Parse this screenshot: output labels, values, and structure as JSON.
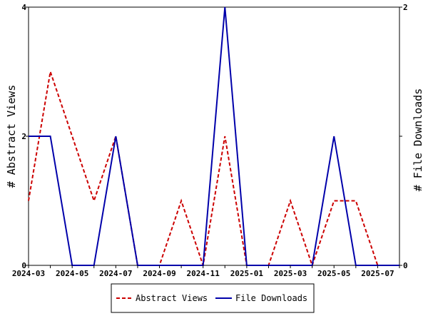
{
  "chart_data": {
    "type": "line",
    "x": [
      "2024-03",
      "2024-04",
      "2024-05",
      "2024-06",
      "2024-07",
      "2024-08",
      "2024-09",
      "2024-10",
      "2024-11",
      "2024-12",
      "2025-01",
      "2025-02",
      "2025-03",
      "2025-04",
      "2025-05",
      "2025-06",
      "2025-07",
      "2025-08"
    ],
    "x_tick_labels": [
      "2024-03",
      "2024-05",
      "2024-07",
      "2024-09",
      "2024-11",
      "2025-01",
      "2025-03",
      "2025-05",
      "2025-07"
    ],
    "series": [
      {
        "name": "Abstract Views",
        "axis": "left",
        "color": "#cc0000",
        "dash": "dashed",
        "values": [
          1,
          3,
          2,
          1,
          2,
          0,
          0,
          1,
          0,
          2,
          0,
          0,
          1,
          0,
          1,
          1,
          0,
          0
        ]
      },
      {
        "name": "File Downloads",
        "axis": "right",
        "color": "#0000aa",
        "dash": "solid",
        "values": [
          1,
          1,
          0,
          0,
          1,
          0,
          0,
          0,
          0,
          2,
          0,
          0,
          0,
          0,
          1,
          0,
          0,
          0
        ]
      }
    ],
    "y_left": {
      "label": "# Abstract Views",
      "range": [
        0,
        4
      ],
      "ticks": [
        0,
        2,
        4
      ]
    },
    "y_right": {
      "label": "# File Downloads",
      "range": [
        0,
        2
      ],
      "ticks": [
        0,
        1,
        2
      ],
      "tick_labels_shown": [
        0,
        2
      ]
    },
    "grid": false,
    "legend_position": "bottom-center"
  }
}
